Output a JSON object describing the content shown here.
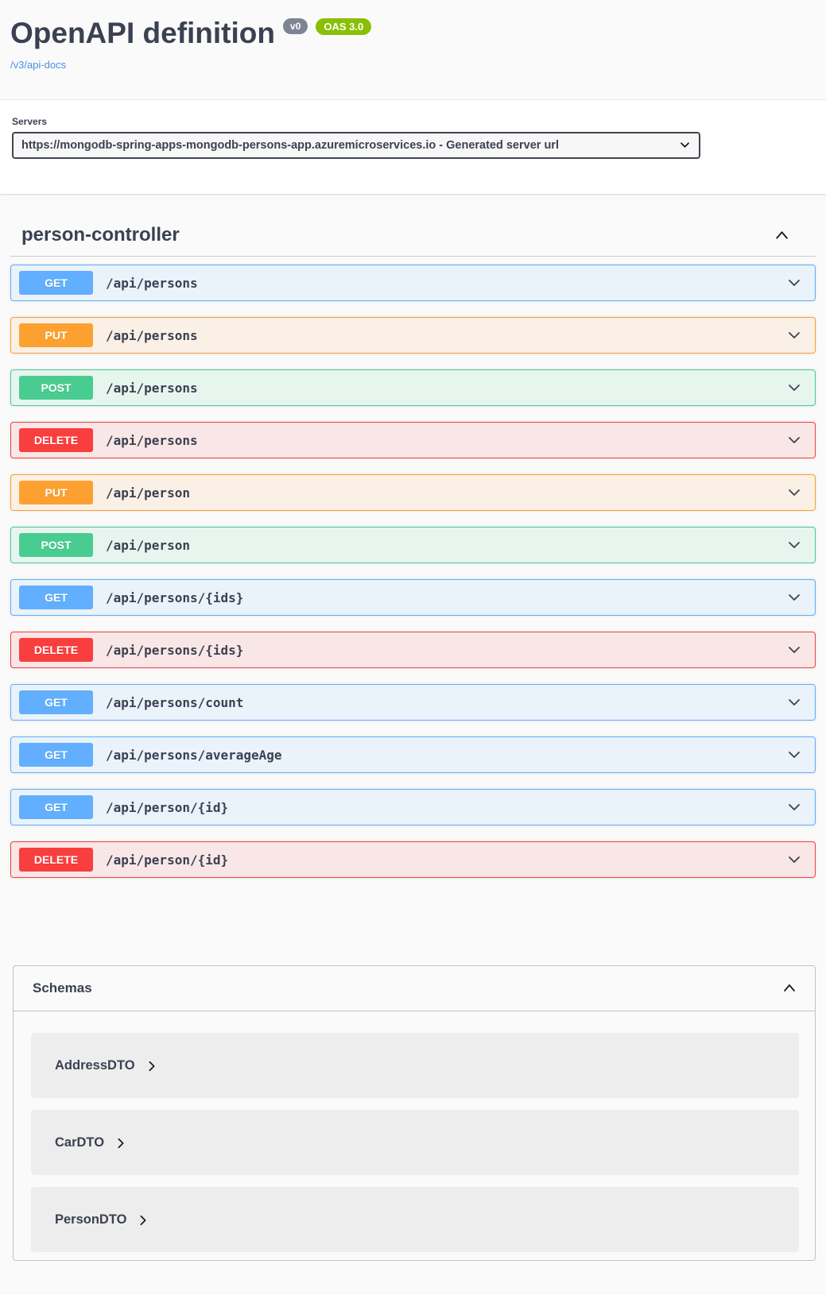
{
  "header": {
    "title": "OpenAPI definition",
    "version_badge": "v0",
    "oas_badge": "OAS 3.0",
    "spec_link": "/v3/api-docs"
  },
  "servers": {
    "label": "Servers",
    "selected_option": "https://mongodb-spring-apps-mongodb-persons-app.azuremicroservices.io - Generated server url"
  },
  "controller": {
    "name": "person-controller",
    "operations": [
      {
        "method": "GET",
        "path": "/api/persons"
      },
      {
        "method": "PUT",
        "path": "/api/persons"
      },
      {
        "method": "POST",
        "path": "/api/persons"
      },
      {
        "method": "DELETE",
        "path": "/api/persons"
      },
      {
        "method": "PUT",
        "path": "/api/person"
      },
      {
        "method": "POST",
        "path": "/api/person"
      },
      {
        "method": "GET",
        "path": "/api/persons/{ids}"
      },
      {
        "method": "DELETE",
        "path": "/api/persons/{ids}"
      },
      {
        "method": "GET",
        "path": "/api/persons/count"
      },
      {
        "method": "GET",
        "path": "/api/persons/averageAge"
      },
      {
        "method": "GET",
        "path": "/api/person/{id}"
      },
      {
        "method": "DELETE",
        "path": "/api/person/{id}"
      }
    ]
  },
  "schemas": {
    "title": "Schemas",
    "models": [
      "AddressDTO",
      "CarDTO",
      "PersonDTO"
    ]
  },
  "icons": {
    "tag_collapse": "chevron-up-icon",
    "schemas_collapse": "chevron-up-icon",
    "operation_expand": "chevron-down-icon",
    "model_expand": "chevron-right-icon",
    "select_caret": "chevron-down-icon"
  },
  "colors": {
    "get": "#61affe",
    "put": "#fca130",
    "post": "#49cc90",
    "delete": "#f93e3e",
    "version_badge_bg": "#7d8492",
    "oas_badge_bg": "#89bf04",
    "link": "#4990e2",
    "text": "#3b4151",
    "page_background": "#fafafa"
  }
}
